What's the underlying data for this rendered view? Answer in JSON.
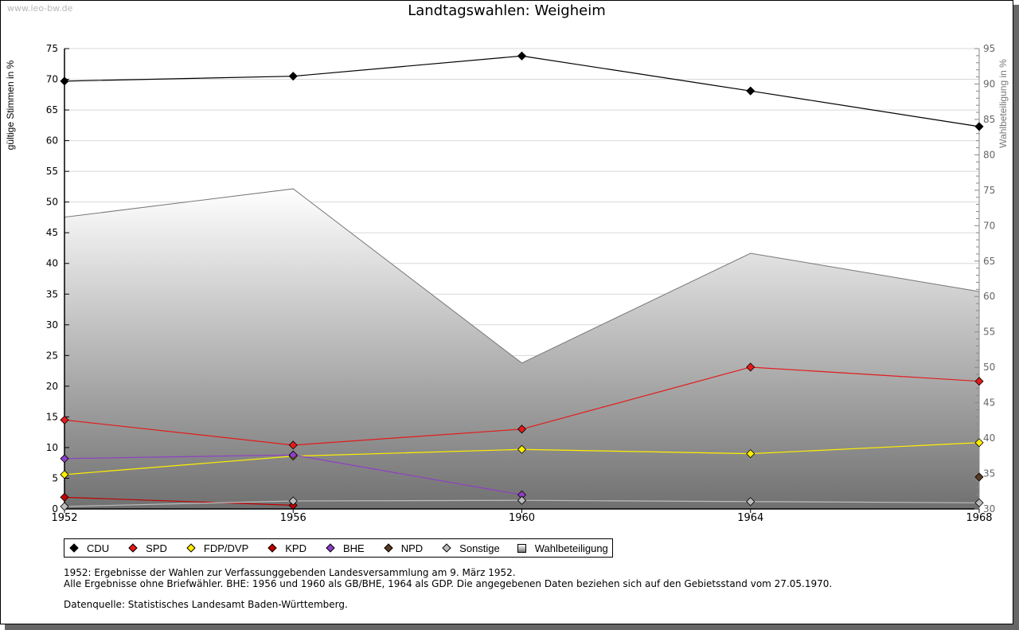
{
  "watermark": "www.leo-bw.de",
  "chart_data": {
    "type": "line",
    "title": "Landtagswahlen: Weigheim",
    "xlabel": "",
    "ylabel": "gültige Stimmen in %",
    "y2label": "Wahlbeteiligung in %",
    "categories": [
      "1952",
      "1956",
      "1960",
      "1964",
      "1968"
    ],
    "ylim": [
      0,
      75
    ],
    "y2lim": [
      30,
      95
    ],
    "yticks": [
      "0",
      "5",
      "10",
      "15",
      "20",
      "25",
      "30",
      "35",
      "40",
      "45",
      "50",
      "55",
      "60",
      "65",
      "70",
      "75"
    ],
    "y2ticks": [
      "30",
      "35",
      "40",
      "45",
      "50",
      "55",
      "60",
      "65",
      "70",
      "75",
      "80",
      "85",
      "90",
      "95"
    ],
    "grid": true,
    "legend_position": "bottom-left",
    "series": [
      {
        "name": "CDU",
        "color": "#000000",
        "axis": "left",
        "values": [
          69.7,
          70.5,
          73.8,
          68.1,
          62.3
        ]
      },
      {
        "name": "SPD",
        "color": "#e31b1b",
        "axis": "left",
        "values": [
          14.5,
          10.4,
          13.0,
          23.1,
          20.8
        ]
      },
      {
        "name": "FDP/DVP",
        "color": "#ffef00",
        "axis": "left",
        "values": [
          5.6,
          8.6,
          9.7,
          9.0,
          10.8
        ]
      },
      {
        "name": "KPD",
        "color": "#c00000",
        "axis": "left",
        "values": [
          1.9,
          0.6,
          null,
          null,
          null
        ]
      },
      {
        "name": "BHE",
        "color": "#8e3fc4",
        "axis": "left",
        "values": [
          8.2,
          8.8,
          2.3,
          null,
          null
        ]
      },
      {
        "name": "NPD",
        "color": "#5a3a22",
        "axis": "left",
        "values": [
          null,
          null,
          null,
          null,
          5.2
        ]
      },
      {
        "name": "Sonstige",
        "color": "#bdbdbd",
        "axis": "left",
        "values": [
          0.4,
          1.3,
          1.4,
          1.2,
          1.0
        ]
      },
      {
        "name": "Wahlbeteiligung",
        "color": "#888888",
        "axis": "right",
        "type": "area",
        "values": [
          71.2,
          75.2,
          50.6,
          66.1,
          60.7
        ]
      }
    ]
  },
  "notes": {
    "line1": "1952: Ergebnisse der Wahlen zur Verfassunggebenden Landesversammlung am 9. März 1952.",
    "line2": "Alle Ergebnisse ohne Briefwähler. BHE: 1956 und 1960 als GB/BHE, 1964 als GDP. Die angegebenen Daten beziehen sich auf den Gebietsstand vom 27.05.1970.",
    "line3": "Datenquelle: Statistisches Landesamt Baden-Württemberg."
  }
}
